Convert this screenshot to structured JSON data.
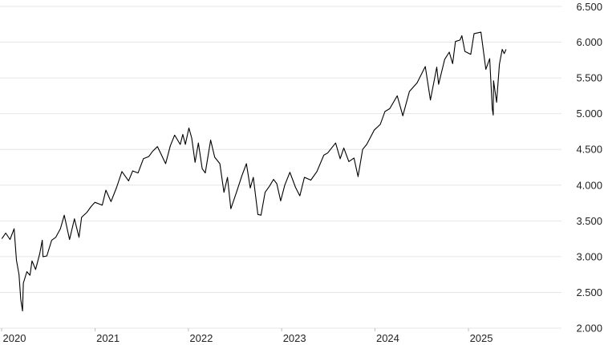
{
  "chart_data": {
    "type": "line",
    "title": "",
    "xlabel": "",
    "ylabel": "",
    "x_axis": {
      "type": "date",
      "range": [
        "2020-01-01",
        "2025-12-31"
      ],
      "ticks": [
        {
          "date": "2020-01-01",
          "label": "2020"
        },
        {
          "date": "2021-01-01",
          "label": "2021"
        },
        {
          "date": "2022-01-01",
          "label": "2022"
        },
        {
          "date": "2023-01-01",
          "label": "2023"
        },
        {
          "date": "2024-01-01",
          "label": "2024"
        },
        {
          "date": "2025-01-01",
          "label": "2025"
        }
      ]
    },
    "y_axis": {
      "range": [
        2000,
        6500
      ],
      "position": "right",
      "ticks": [
        {
          "value": 2000,
          "label": "2.000"
        },
        {
          "value": 2500,
          "label": "2.500"
        },
        {
          "value": 3000,
          "label": "3.000"
        },
        {
          "value": 3500,
          "label": "3.500"
        },
        {
          "value": 4000,
          "label": "4.000"
        },
        {
          "value": 4500,
          "label": "4.500"
        },
        {
          "value": 5000,
          "label": "5.000"
        },
        {
          "value": 5500,
          "label": "5.500"
        },
        {
          "value": 6000,
          "label": "6.000"
        },
        {
          "value": 6500,
          "label": "6.500"
        }
      ]
    },
    "grid": "horizontal",
    "legend": "none",
    "line_color": "#000000",
    "series": [
      {
        "points": [
          [
            "2020-01-02",
            3250
          ],
          [
            "2020-01-17",
            3330
          ],
          [
            "2020-02-03",
            3240
          ],
          [
            "2020-02-19",
            3390
          ],
          [
            "2020-02-28",
            2950
          ],
          [
            "2020-03-09",
            2750
          ],
          [
            "2020-03-16",
            2400
          ],
          [
            "2020-03-23",
            2240
          ],
          [
            "2020-03-26",
            2630
          ],
          [
            "2020-04-09",
            2790
          ],
          [
            "2020-04-21",
            2740
          ],
          [
            "2020-04-29",
            2940
          ],
          [
            "2020-05-13",
            2820
          ],
          [
            "2020-05-29",
            3040
          ],
          [
            "2020-06-08",
            3230
          ],
          [
            "2020-06-11",
            3000
          ],
          [
            "2020-06-26",
            3010
          ],
          [
            "2020-07-15",
            3230
          ],
          [
            "2020-07-31",
            3270
          ],
          [
            "2020-08-18",
            3390
          ],
          [
            "2020-09-02",
            3580
          ],
          [
            "2020-09-23",
            3240
          ],
          [
            "2020-10-12",
            3530
          ],
          [
            "2020-10-30",
            3270
          ],
          [
            "2020-11-09",
            3550
          ],
          [
            "2020-11-30",
            3620
          ],
          [
            "2020-12-16",
            3700
          ],
          [
            "2020-12-31",
            3760
          ],
          [
            "2021-01-29",
            3720
          ],
          [
            "2021-02-12",
            3930
          ],
          [
            "2021-03-04",
            3770
          ],
          [
            "2021-03-26",
            3970
          ],
          [
            "2021-04-16",
            4190
          ],
          [
            "2021-05-12",
            4060
          ],
          [
            "2021-05-28",
            4200
          ],
          [
            "2021-06-18",
            4170
          ],
          [
            "2021-07-09",
            4370
          ],
          [
            "2021-07-30",
            4400
          ],
          [
            "2021-08-13",
            4470
          ],
          [
            "2021-09-02",
            4540
          ],
          [
            "2021-10-04",
            4300
          ],
          [
            "2021-10-22",
            4550
          ],
          [
            "2021-11-08",
            4700
          ],
          [
            "2021-11-30",
            4570
          ],
          [
            "2021-12-10",
            4710
          ],
          [
            "2021-12-20",
            4570
          ],
          [
            "2022-01-03",
            4800
          ],
          [
            "2022-01-14",
            4660
          ],
          [
            "2022-01-27",
            4320
          ],
          [
            "2022-02-09",
            4590
          ],
          [
            "2022-02-24",
            4230
          ],
          [
            "2022-03-08",
            4170
          ],
          [
            "2022-03-29",
            4630
          ],
          [
            "2022-04-14",
            4390
          ],
          [
            "2022-05-04",
            4300
          ],
          [
            "2022-05-20",
            3900
          ],
          [
            "2022-06-03",
            4110
          ],
          [
            "2022-06-16",
            3670
          ],
          [
            "2022-07-08",
            3900
          ],
          [
            "2022-07-29",
            4130
          ],
          [
            "2022-08-16",
            4300
          ],
          [
            "2022-08-31",
            3960
          ],
          [
            "2022-09-12",
            4110
          ],
          [
            "2022-09-30",
            3590
          ],
          [
            "2022-10-12",
            3580
          ],
          [
            "2022-10-28",
            3900
          ],
          [
            "2022-11-15",
            3990
          ],
          [
            "2022-11-30",
            4080
          ],
          [
            "2022-12-13",
            4020
          ],
          [
            "2022-12-28",
            3780
          ],
          [
            "2023-01-13",
            4000
          ],
          [
            "2023-02-02",
            4180
          ],
          [
            "2023-02-24",
            3970
          ],
          [
            "2023-03-13",
            3850
          ],
          [
            "2023-03-31",
            4110
          ],
          [
            "2023-04-25",
            4070
          ],
          [
            "2023-05-19",
            4190
          ],
          [
            "2023-06-15",
            4420
          ],
          [
            "2023-06-30",
            4450
          ],
          [
            "2023-07-31",
            4590
          ],
          [
            "2023-08-18",
            4370
          ],
          [
            "2023-09-01",
            4520
          ],
          [
            "2023-09-21",
            4330
          ],
          [
            "2023-10-11",
            4380
          ],
          [
            "2023-10-27",
            4120
          ],
          [
            "2023-11-14",
            4500
          ],
          [
            "2023-11-30",
            4570
          ],
          [
            "2023-12-29",
            4770
          ],
          [
            "2024-01-22",
            4850
          ],
          [
            "2024-02-09",
            5030
          ],
          [
            "2024-02-28",
            5070
          ],
          [
            "2024-03-28",
            5250
          ],
          [
            "2024-04-19",
            4970
          ],
          [
            "2024-05-15",
            5310
          ],
          [
            "2024-06-14",
            5430
          ],
          [
            "2024-07-16",
            5660
          ],
          [
            "2024-08-05",
            5190
          ],
          [
            "2024-08-30",
            5650
          ],
          [
            "2024-09-06",
            5410
          ],
          [
            "2024-09-30",
            5760
          ],
          [
            "2024-10-18",
            5860
          ],
          [
            "2024-10-31",
            5700
          ],
          [
            "2024-11-11",
            6010
          ],
          [
            "2024-11-29",
            6030
          ],
          [
            "2024-12-06",
            6090
          ],
          [
            "2024-12-18",
            5870
          ],
          [
            "2025-01-10",
            5830
          ],
          [
            "2025-01-23",
            6120
          ],
          [
            "2025-02-19",
            6140
          ],
          [
            "2025-03-10",
            5620
          ],
          [
            "2025-03-25",
            5770
          ],
          [
            "2025-04-04",
            5070
          ],
          [
            "2025-04-08",
            4980
          ],
          [
            "2025-04-09",
            5460
          ],
          [
            "2025-04-21",
            5160
          ],
          [
            "2025-05-02",
            5690
          ],
          [
            "2025-05-13",
            5900
          ],
          [
            "2025-05-21",
            5840
          ],
          [
            "2025-05-28",
            5900
          ]
        ]
      }
    ]
  }
}
